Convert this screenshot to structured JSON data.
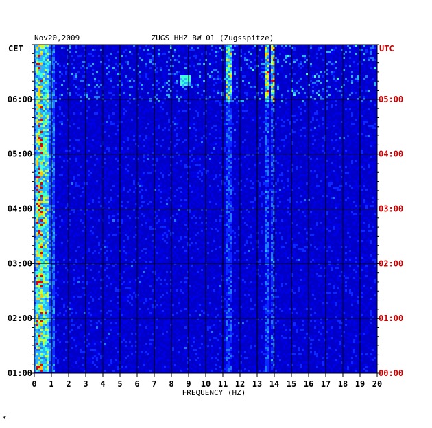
{
  "chart_data": {
    "type": "heatmap",
    "date_label": "Nov20,2009",
    "station_title": "ZUGS HHZ BW 01 (Zugsspitze)",
    "left_axis_label": "CET",
    "right_axis_label": "UTC",
    "xlabel": "FREQUENCY (HZ)",
    "x_ticks": [
      "0",
      "1",
      "2",
      "3",
      "4",
      "5",
      "6",
      "7",
      "8",
      "9",
      "10",
      "11",
      "12",
      "13",
      "14",
      "15",
      "16",
      "17",
      "18",
      "19",
      "20"
    ],
    "xlim": [
      0,
      20
    ],
    "left_time_ticks": [
      "06:00",
      "05:00",
      "04:00",
      "03:00",
      "02:00",
      "01:00"
    ],
    "right_time_ticks": [
      "05:00",
      "04:00",
      "03:00",
      "02:00",
      "01:00",
      "00:00"
    ],
    "time_range_cet": [
      "01:00",
      "07:00"
    ],
    "colors": {
      "background_plot": "#0000c8",
      "grid": "#000000",
      "left_labels": "#000000",
      "right_labels": "#cc0000"
    },
    "features": {
      "low_frequency_band_hz": [
        0,
        0.8
      ],
      "persistent_lines_hz": [
        11.4,
        13.6,
        14.0
      ],
      "active_period_cet": [
        "06:00",
        "07:00"
      ]
    }
  },
  "footnote": "*"
}
